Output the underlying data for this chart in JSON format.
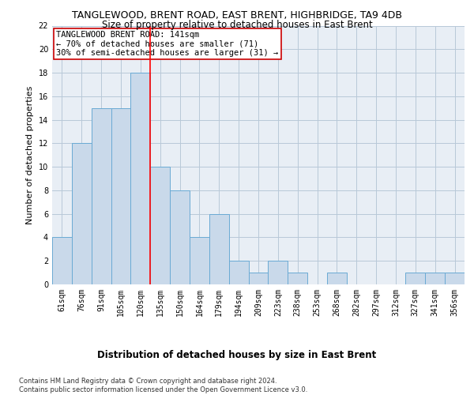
{
  "title": "TANGLEWOOD, BRENT ROAD, EAST BRENT, HIGHBRIDGE, TA9 4DB",
  "subtitle": "Size of property relative to detached houses in East Brent",
  "xlabel": "Distribution of detached houses by size in East Brent",
  "ylabel": "Number of detached properties",
  "categories": [
    "61sqm",
    "76sqm",
    "91sqm",
    "105sqm",
    "120sqm",
    "135sqm",
    "150sqm",
    "164sqm",
    "179sqm",
    "194sqm",
    "209sqm",
    "223sqm",
    "238sqm",
    "253sqm",
    "268sqm",
    "282sqm",
    "297sqm",
    "312sqm",
    "327sqm",
    "341sqm",
    "356sqm"
  ],
  "values": [
    4,
    12,
    15,
    15,
    18,
    10,
    8,
    4,
    6,
    2,
    1,
    2,
    1,
    0,
    1,
    0,
    0,
    0,
    1,
    1,
    1
  ],
  "bar_color": "#c9d9ea",
  "bar_edge_color": "#6aaad4",
  "grid_color": "#b8c8d8",
  "background_color": "#e8eef5",
  "red_line_x": 4.5,
  "annotation_text": "TANGLEWOOD BRENT ROAD: 141sqm\n← 70% of detached houses are smaller (71)\n30% of semi-detached houses are larger (31) →",
  "annotation_box_color": "#ffffff",
  "annotation_border_color": "#cc0000",
  "ylim": [
    0,
    22
  ],
  "yticks": [
    0,
    2,
    4,
    6,
    8,
    10,
    12,
    14,
    16,
    18,
    20,
    22
  ],
  "footnote": "Contains HM Land Registry data © Crown copyright and database right 2024.\nContains public sector information licensed under the Open Government Licence v3.0.",
  "title_fontsize": 9,
  "subtitle_fontsize": 8.5,
  "ylabel_fontsize": 8,
  "xlabel_fontsize": 8.5,
  "tick_fontsize": 7,
  "annotation_fontsize": 7.5,
  "footnote_fontsize": 6
}
